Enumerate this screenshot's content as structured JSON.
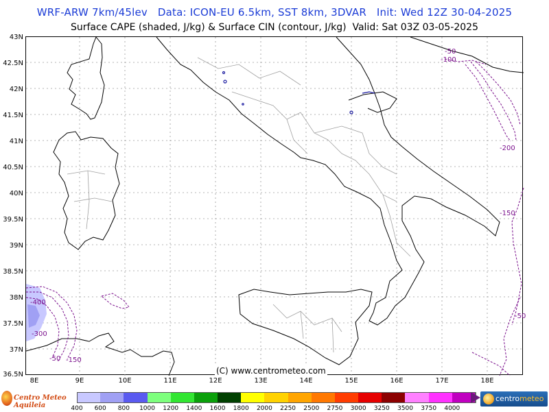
{
  "header": {
    "line1": "WRF-ARW 7km/45lev   Data: ICON-EU 6.5km, SST 8km, 3DVAR   Init: Wed 12Z 30-04-2025",
    "line2": "Surface CAPE (shaded, J/kg) & Surface CIN (contour, J/kg)  Valid: Sat 03Z 03-05-2025"
  },
  "axes": {
    "lat_labels": [
      "43N",
      "42.5N",
      "42N",
      "41.5N",
      "41N",
      "40.5N",
      "40N",
      "39.5N",
      "39N",
      "38.5N",
      "38N",
      "37.5N",
      "37N",
      "36.5N"
    ],
    "lon_labels": [
      "8E",
      "9E",
      "10E",
      "11E",
      "12E",
      "13E",
      "14E",
      "15E",
      "16E",
      "17E",
      "18E"
    ]
  },
  "map": {
    "cin_labels": [
      "-50",
      "-100",
      "-200",
      "-150",
      "-50",
      "-400",
      "-50",
      "-150",
      "-300"
    ],
    "copyright": "(C) www.centrometeo.com",
    "colors": {
      "coast": "#000000",
      "borders": "#a0a0a0",
      "grid": "#9a9a9a",
      "cin_contour": "#7a0f8c",
      "cape_patch": "#1a1aa0"
    }
  },
  "colorbar": {
    "labels": [
      "400",
      "600",
      "800",
      "1000",
      "1200",
      "1400",
      "1600",
      "1800",
      "2000",
      "2250",
      "2500",
      "2750",
      "3000",
      "3250",
      "3500",
      "3750",
      "4000"
    ],
    "colors": [
      "#c8c8ff",
      "#a0a0f4",
      "#5a5af0",
      "#7dff7d",
      "#32e632",
      "#0aa00a",
      "#004000",
      "#ffff00",
      "#ffd200",
      "#ffa500",
      "#ff7800",
      "#ff3c00",
      "#e60000",
      "#8c0000",
      "#ff80ff",
      "#ff32ff",
      "#c000c0",
      "#8c008c"
    ]
  },
  "logos": {
    "left": "Centro Meteo Aquileia",
    "right_main": "centro",
    "right_accent": "meteo"
  }
}
